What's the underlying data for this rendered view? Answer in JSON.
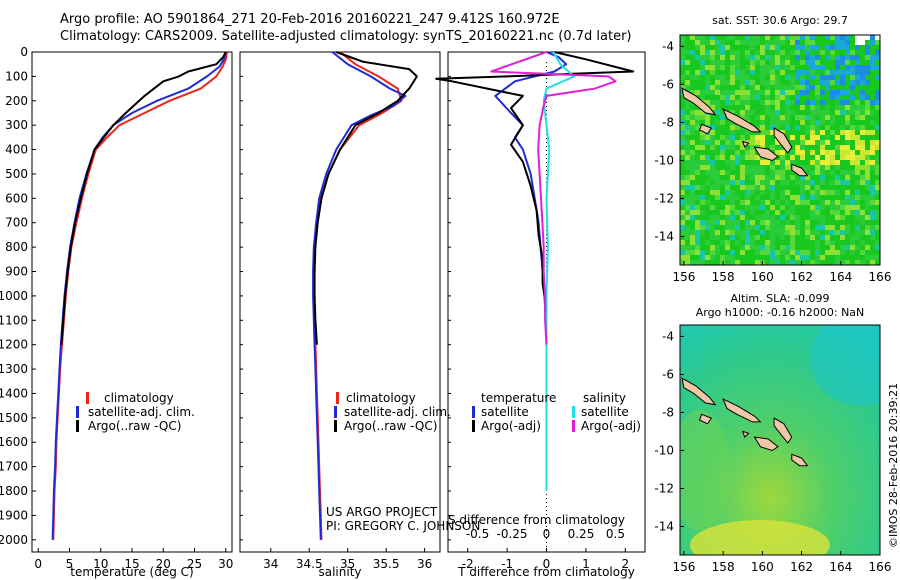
{
  "header": {
    "line1": "Argo profile: AO 5901864_271 20-Feb-2016 20160221_247 9.412S 160.972E",
    "line2": "Climatology: CARS2009. Satellite-adjusted climatology: synTS_20160221.nc (0.7d later)"
  },
  "colors": {
    "climatology": "#e8261a",
    "satellite": "#1f2bd6",
    "argo": "#000000",
    "sal_satellite": "#1ee0e8",
    "sal_argo": "#e020d8"
  },
  "depth_axis": {
    "ylim": [
      0,
      2050
    ],
    "ticks": [
      "0",
      "100",
      "200",
      "300",
      "400",
      "500",
      "600",
      "700",
      "800",
      "900",
      "1000",
      "1100",
      "1200",
      "1300",
      "1400",
      "1500",
      "1600",
      "1700",
      "1800",
      "1900",
      "2000"
    ]
  },
  "credits": {
    "project": "US ARGO PROJECT",
    "pi": "PI: GREGORY C. JOHNSON",
    "stamp": "©IMOS 28-Feb-2016 20:39:21"
  },
  "chart_data": [
    {
      "id": "temperature",
      "type": "line",
      "xlabel": "temperature (deg C)",
      "xlim": [
        -1,
        31
      ],
      "xticks": [
        0,
        5,
        10,
        15,
        20,
        25,
        30
      ],
      "xtick_labels": [
        "0",
        "5",
        "10",
        "15",
        "20",
        "25",
        "30"
      ],
      "legend": [
        "climatology",
        "satellite-adj. clim.",
        "Argo(..raw -QC)"
      ],
      "series": [
        {
          "name": "climatology",
          "color": "#e8261a",
          "points": [
            [
              30.2,
              0
            ],
            [
              30,
              30
            ],
            [
              29.5,
              60
            ],
            [
              28.5,
              100
            ],
            [
              26,
              150
            ],
            [
              21,
              200
            ],
            [
              17,
              250
            ],
            [
              13,
              300
            ],
            [
              11,
              350
            ],
            [
              9.2,
              400
            ],
            [
              8,
              500
            ],
            [
              7,
              600
            ],
            [
              6.1,
              700
            ],
            [
              5.3,
              800
            ],
            [
              4.8,
              900
            ],
            [
              4.4,
              1000
            ],
            [
              4.1,
              1100
            ],
            [
              3.8,
              1200
            ],
            [
              3.5,
              1300
            ],
            [
              3.3,
              1400
            ],
            [
              3.1,
              1500
            ],
            [
              2.9,
              1600
            ],
            [
              2.8,
              1700
            ],
            [
              2.6,
              1800
            ],
            [
              2.5,
              1900
            ],
            [
              2.4,
              2000
            ]
          ]
        },
        {
          "name": "satellite-adj. clim.",
          "color": "#1f2bd6",
          "points": [
            [
              30,
              0
            ],
            [
              29.7,
              30
            ],
            [
              29,
              60
            ],
            [
              27,
              100
            ],
            [
              24,
              150
            ],
            [
              19,
              200
            ],
            [
              15,
              250
            ],
            [
              12,
              300
            ],
            [
              10.3,
              350
            ],
            [
              9,
              400
            ],
            [
              7.7,
              500
            ],
            [
              6.6,
              600
            ],
            [
              5.8,
              700
            ],
            [
              5.1,
              800
            ],
            [
              4.6,
              900
            ],
            [
              4.2,
              1000
            ],
            [
              3.9,
              1100
            ],
            [
              3.6,
              1200
            ],
            [
              3.4,
              1300
            ],
            [
              3.2,
              1400
            ],
            [
              3,
              1500
            ],
            [
              2.8,
              1600
            ],
            [
              2.7,
              1700
            ],
            [
              2.5,
              1800
            ],
            [
              2.4,
              1900
            ],
            [
              2.3,
              2000
            ]
          ]
        },
        {
          "name": "Argo(..raw -QC)",
          "color": "#000000",
          "points": [
            [
              30,
              0
            ],
            [
              29.6,
              20
            ],
            [
              28.5,
              50
            ],
            [
              24,
              80
            ],
            [
              22.5,
              100
            ],
            [
              20,
              120
            ],
            [
              17,
              180
            ],
            [
              14,
              250
            ],
            [
              12,
              300
            ],
            [
              10.5,
              350
            ],
            [
              9,
              400
            ],
            [
              7.8,
              500
            ],
            [
              6.8,
              600
            ],
            [
              5.9,
              700
            ],
            [
              5.2,
              800
            ],
            [
              4.7,
              900
            ],
            [
              4.3,
              1000
            ],
            [
              4,
              1100
            ],
            [
              3.7,
              1200
            ]
          ]
        }
      ]
    },
    {
      "id": "salinity",
      "type": "line",
      "xlabel": "salinity",
      "xlim": [
        33.6,
        36.2
      ],
      "xticks": [
        34,
        34.5,
        35,
        35.5,
        36
      ],
      "xtick_labels": [
        "34",
        "34.5",
        "35",
        "35.5",
        "36"
      ],
      "legend": [
        "climatology",
        "satellite-adj. clim.",
        "Argo(..raw -QC)"
      ],
      "series": [
        {
          "name": "climatology",
          "color": "#e8261a",
          "points": [
            [
              34.9,
              0
            ],
            [
              35.1,
              50
            ],
            [
              35.4,
              100
            ],
            [
              35.65,
              150
            ],
            [
              35.7,
              200
            ],
            [
              35.45,
              250
            ],
            [
              35.15,
              300
            ],
            [
              34.9,
              400
            ],
            [
              34.75,
              500
            ],
            [
              34.65,
              600
            ],
            [
              34.6,
              700
            ],
            [
              34.57,
              800
            ],
            [
              34.56,
              900
            ],
            [
              34.56,
              1000
            ],
            [
              34.57,
              1100
            ],
            [
              34.58,
              1200
            ],
            [
              34.59,
              1300
            ],
            [
              34.6,
              1400
            ],
            [
              34.61,
              1500
            ],
            [
              34.62,
              1600
            ],
            [
              34.63,
              1700
            ],
            [
              34.64,
              1800
            ],
            [
              34.65,
              1900
            ],
            [
              34.66,
              2000
            ]
          ]
        },
        {
          "name": "satellite-adj. clim.",
          "color": "#1f2bd6",
          "points": [
            [
              34.8,
              0
            ],
            [
              35,
              50
            ],
            [
              35.3,
              100
            ],
            [
              35.55,
              150
            ],
            [
              35.75,
              180
            ],
            [
              35.6,
              220
            ],
            [
              35.3,
              260
            ],
            [
              35.05,
              300
            ],
            [
              34.85,
              400
            ],
            [
              34.72,
              500
            ],
            [
              34.63,
              600
            ],
            [
              34.59,
              700
            ],
            [
              34.56,
              800
            ],
            [
              34.55,
              900
            ],
            [
              34.55,
              1000
            ],
            [
              34.56,
              1100
            ],
            [
              34.57,
              1200
            ],
            [
              34.58,
              1300
            ],
            [
              34.59,
              1400
            ],
            [
              34.6,
              1500
            ],
            [
              34.61,
              1600
            ],
            [
              34.62,
              1700
            ],
            [
              34.63,
              1800
            ],
            [
              34.64,
              1900
            ],
            [
              34.65,
              2000
            ]
          ]
        },
        {
          "name": "Argo(..raw -QC)",
          "color": "#000000",
          "points": [
            [
              34.85,
              0
            ],
            [
              35.2,
              40
            ],
            [
              35.8,
              70
            ],
            [
              35.9,
              100
            ],
            [
              35.8,
              150
            ],
            [
              35.65,
              200
            ],
            [
              35.4,
              250
            ],
            [
              35.1,
              300
            ],
            [
              34.9,
              400
            ],
            [
              34.75,
              500
            ],
            [
              34.66,
              600
            ],
            [
              34.61,
              700
            ],
            [
              34.58,
              800
            ],
            [
              34.57,
              900
            ],
            [
              34.57,
              1000
            ],
            [
              34.58,
              1100
            ],
            [
              34.6,
              1200
            ]
          ]
        }
      ]
    },
    {
      "id": "difference",
      "type": "line",
      "xlabel": "T difference from climatology",
      "xlabel_top": "S difference from climatology",
      "xlim": [
        -2.5,
        2.5
      ],
      "xticks": [
        -2,
        -1,
        0,
        1,
        2
      ],
      "xtick_labels": [
        "-2",
        "-1",
        "0",
        "1",
        "2"
      ],
      "s_xtick_values": [
        -0.5,
        -0.25,
        0,
        0.25,
        0.5
      ],
      "s_xtick_labels": [
        "-0.5",
        "-0.25",
        "0",
        "0.25",
        "0.5"
      ],
      "legend_headers": [
        "temperature",
        "salinity"
      ],
      "legend": [
        "satellite",
        "Argo(-adj)",
        "satellite",
        "Argo(-adj)"
      ],
      "series": [
        {
          "name": "T satellite",
          "color": "#1f2bd6",
          "points": [
            [
              0,
              0
            ],
            [
              0.3,
              20
            ],
            [
              0.5,
              50
            ],
            [
              0.2,
              80
            ],
            [
              -0.8,
              120
            ],
            [
              -1.3,
              180
            ],
            [
              -0.9,
              250
            ],
            [
              -0.6,
              300
            ],
            [
              -0.8,
              350
            ],
            [
              -0.6,
              400
            ],
            [
              -0.4,
              500
            ],
            [
              -0.3,
              600
            ],
            [
              -0.2,
              700
            ],
            [
              -0.15,
              800
            ],
            [
              -0.1,
              900
            ],
            [
              -0.05,
              1000
            ],
            [
              -0.02,
              1100
            ],
            [
              0,
              1200
            ],
            [
              0,
              1400
            ],
            [
              0,
              1600
            ],
            [
              0,
              1800
            ]
          ]
        },
        {
          "name": "T Argo(-adj)",
          "color": "#000000",
          "points": [
            [
              0.2,
              0
            ],
            [
              1,
              30
            ],
            [
              2.2,
              80
            ],
            [
              0.5,
              90
            ],
            [
              -1,
              100
            ],
            [
              -2.8,
              110
            ],
            [
              -2.4,
              120
            ],
            [
              -0.6,
              180
            ],
            [
              -0.9,
              230
            ],
            [
              -0.6,
              300
            ],
            [
              -0.9,
              380
            ],
            [
              -0.6,
              450
            ],
            [
              -0.4,
              550
            ],
            [
              -0.25,
              650
            ],
            [
              -0.2,
              750
            ],
            [
              -0.1,
              850
            ],
            [
              -0.1,
              950
            ],
            [
              0,
              1050
            ],
            [
              0,
              1200
            ]
          ]
        },
        {
          "name": "S satellite",
          "color": "#1ee0e8",
          "points": [
            [
              0.05,
              0
            ],
            [
              0.1,
              50
            ],
            [
              0.2,
              100
            ],
            [
              0,
              150
            ],
            [
              -0.02,
              200
            ],
            [
              0,
              300
            ],
            [
              0.02,
              400
            ],
            [
              0,
              600
            ],
            [
              0.01,
              800
            ],
            [
              0,
              1000
            ],
            [
              0,
              1200
            ],
            [
              0,
              1400
            ],
            [
              0,
              1600
            ],
            [
              0,
              1800
            ]
          ]
        },
        {
          "name": "S Argo(-adj)",
          "color": "#e020d8",
          "points": [
            [
              0,
              0
            ],
            [
              -0.4,
              80
            ],
            [
              0.45,
              100
            ],
            [
              0.5,
              120
            ],
            [
              0.35,
              150
            ],
            [
              0,
              180
            ],
            [
              -0.02,
              220
            ],
            [
              -0.05,
              300
            ],
            [
              -0.06,
              400
            ],
            [
              -0.05,
              500
            ],
            [
              -0.04,
              600
            ],
            [
              -0.03,
              700
            ],
            [
              -0.02,
              800
            ],
            [
              -0.02,
              900
            ],
            [
              -0.01,
              1000
            ],
            [
              -0.01,
              1100
            ],
            [
              0,
              1200
            ]
          ]
        }
      ]
    },
    {
      "id": "sst_map",
      "type": "heatmap",
      "title": "sat. SST: 30.6  Argo: 29.7",
      "xlim": [
        155.8,
        166
      ],
      "ylim": [
        -15.5,
        -3.4
      ],
      "xticks": [
        156,
        158,
        160,
        162,
        164,
        166
      ],
      "xtick_labels": [
        "156",
        "158",
        "160",
        "162",
        "164",
        "166"
      ],
      "yticks": [
        -4,
        -6,
        -8,
        -10,
        -12,
        -14
      ],
      "ytick_labels": [
        "-4",
        "-6",
        "-8",
        "-10",
        "-12",
        "-14"
      ]
    },
    {
      "id": "sla_map",
      "type": "heatmap",
      "title": "Altim. SLA: -0.099",
      "subtitle": "Argo h1000: -0.16 h2000: NaN",
      "xlim": [
        155.8,
        166
      ],
      "ylim": [
        -15.5,
        -3.4
      ],
      "xticks": [
        156,
        158,
        160,
        162,
        164,
        166
      ],
      "xtick_labels": [
        "156",
        "158",
        "160",
        "162",
        "164",
        "166"
      ],
      "yticks": [
        -4,
        -6,
        -8,
        -10,
        -12,
        -14
      ],
      "ytick_labels": [
        "-4",
        "-6",
        "-8",
        "-10",
        "-12",
        "-14"
      ]
    }
  ]
}
